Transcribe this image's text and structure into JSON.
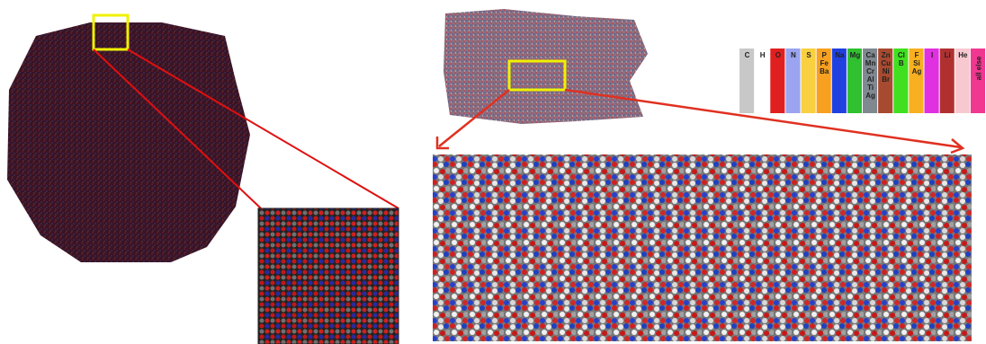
{
  "legend": [
    {
      "lines": [
        "C"
      ],
      "color": "#c8c8c8"
    },
    {
      "lines": [
        "H"
      ],
      "color": "#ffffff"
    },
    {
      "lines": [
        "O"
      ],
      "color": "#e02020"
    },
    {
      "lines": [
        "N"
      ],
      "color": "#9aa4f0"
    },
    {
      "lines": [
        "S"
      ],
      "color": "#f8d040"
    },
    {
      "lines": [
        "P",
        "Fe",
        "Ba"
      ],
      "color": "#f8a020"
    },
    {
      "lines": [
        "Na"
      ],
      "color": "#2040e0"
    },
    {
      "lines": [
        "Mg"
      ],
      "color": "#30c030"
    },
    {
      "lines": [
        "Ca",
        "Mn",
        "Cr",
        "Al",
        "Ti",
        "Ag"
      ],
      "color": "#808890"
    },
    {
      "lines": [
        "Zn",
        "Cu",
        "Ni",
        "Br"
      ],
      "color": "#a84a30"
    },
    {
      "lines": [
        "Cl",
        "B"
      ],
      "color": "#40e020"
    },
    {
      "lines": [
        "F",
        "Si",
        "Ag"
      ],
      "color": "#f8b020"
    },
    {
      "lines": [
        "I"
      ],
      "color": "#e030e0"
    },
    {
      "lines": [
        "Li"
      ],
      "color": "#b03030"
    },
    {
      "lines": [
        "He"
      ],
      "color": "#f8c8d0"
    },
    {
      "lines": [
        "all else"
      ],
      "color": "#f03890",
      "rotated": true
    }
  ]
}
